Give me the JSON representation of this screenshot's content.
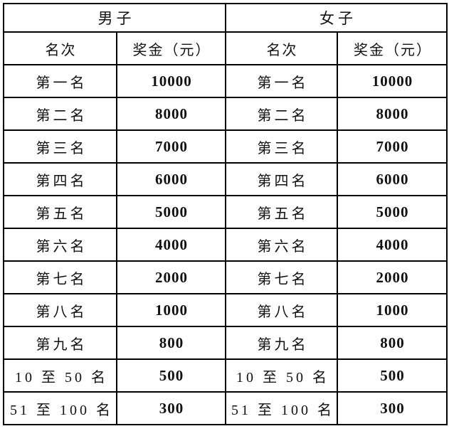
{
  "colors": {
    "border": "#000000",
    "text": "#111111",
    "background": "#ffffff"
  },
  "table": {
    "group_headers": [
      {
        "label": "男子"
      },
      {
        "label": "女子"
      }
    ],
    "column_headers": [
      "名次",
      "奖金（元）",
      "名次",
      "奖金（元）"
    ],
    "rows": [
      [
        "第一名",
        "10000",
        "第一名",
        "10000"
      ],
      [
        "第二名",
        "8000",
        "第二名",
        "8000"
      ],
      [
        "第三名",
        "7000",
        "第三名",
        "7000"
      ],
      [
        "第四名",
        "6000",
        "第四名",
        "6000"
      ],
      [
        "第五名",
        "5000",
        "第五名",
        "5000"
      ],
      [
        "第六名",
        "4000",
        "第六名",
        "4000"
      ],
      [
        "第七名",
        "2000",
        "第七名",
        "2000"
      ],
      [
        "第八名",
        "1000",
        "第八名",
        "1000"
      ],
      [
        "第九名",
        "800",
        "第九名",
        "800"
      ],
      [
        "10 至 50 名",
        "500",
        "10 至 50 名",
        "500"
      ],
      [
        "51 至 100 名",
        "300",
        "51 至 100 名",
        "300"
      ]
    ]
  }
}
